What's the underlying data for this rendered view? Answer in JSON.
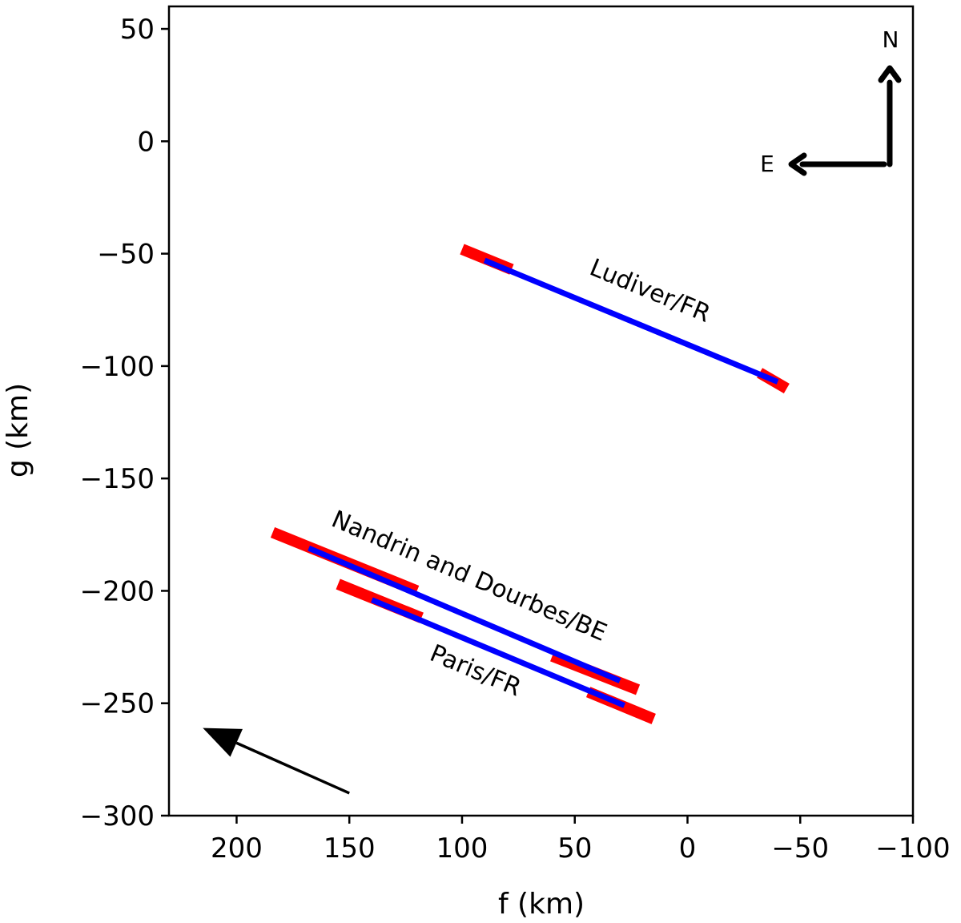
{
  "chart_data": {
    "type": "line",
    "title": "",
    "xlabel": "f (km)",
    "ylabel": "g (km)",
    "xlim": [
      230,
      -100
    ],
    "ylim": [
      -300,
      60
    ],
    "x_ticks": [
      200,
      150,
      100,
      50,
      0,
      -50,
      -100
    ],
    "y_ticks": [
      50,
      0,
      -50,
      -100,
      -150,
      -200,
      -250,
      -300
    ],
    "x_tick_labels": [
      "200",
      "150",
      "100",
      "50",
      "0",
      "−50",
      "−100"
    ],
    "y_tick_labels": [
      "50",
      "0",
      "−50",
      "−100",
      "−150",
      "−200",
      "−250",
      "−300"
    ],
    "grid": false,
    "colors": {
      "chord": "#0000ff",
      "uncertainty": "#ff0000",
      "arrow": "#000000"
    },
    "series": [
      {
        "name": "Ludiver/FR",
        "chord": [
          [
            90,
            -53
          ],
          [
            -40,
            -107
          ]
        ],
        "uncertainty_segments": [
          [
            [
              100,
              -48
            ],
            [
              78,
              -57
            ]
          ],
          [
            [
              -32,
              -103
            ],
            [
              -44,
              -110
            ]
          ]
        ]
      },
      {
        "name": "Nandrin and Dourbes/BE",
        "chord": [
          [
            168,
            -181
          ],
          [
            30,
            -240
          ]
        ],
        "uncertainty_segments": [
          [
            [
              184,
              -174
            ],
            [
              120,
              -200
            ]
          ],
          [
            [
              60,
              -229
            ],
            [
              22,
              -244
            ]
          ]
        ]
      },
      {
        "name": "Paris/FR",
        "chord": [
          [
            140,
            -204
          ],
          [
            28,
            -251
          ]
        ],
        "uncertainty_segments": [
          [
            [
              155,
              -197
            ],
            [
              118,
              -212
            ]
          ],
          [
            [
              44,
              -245
            ],
            [
              15,
              -257
            ]
          ]
        ]
      }
    ],
    "motion_arrow": {
      "from": [
        150,
        -290
      ],
      "to": [
        215,
        -261
      ]
    },
    "compass": {
      "north_label": "N",
      "east_label": "E"
    }
  }
}
